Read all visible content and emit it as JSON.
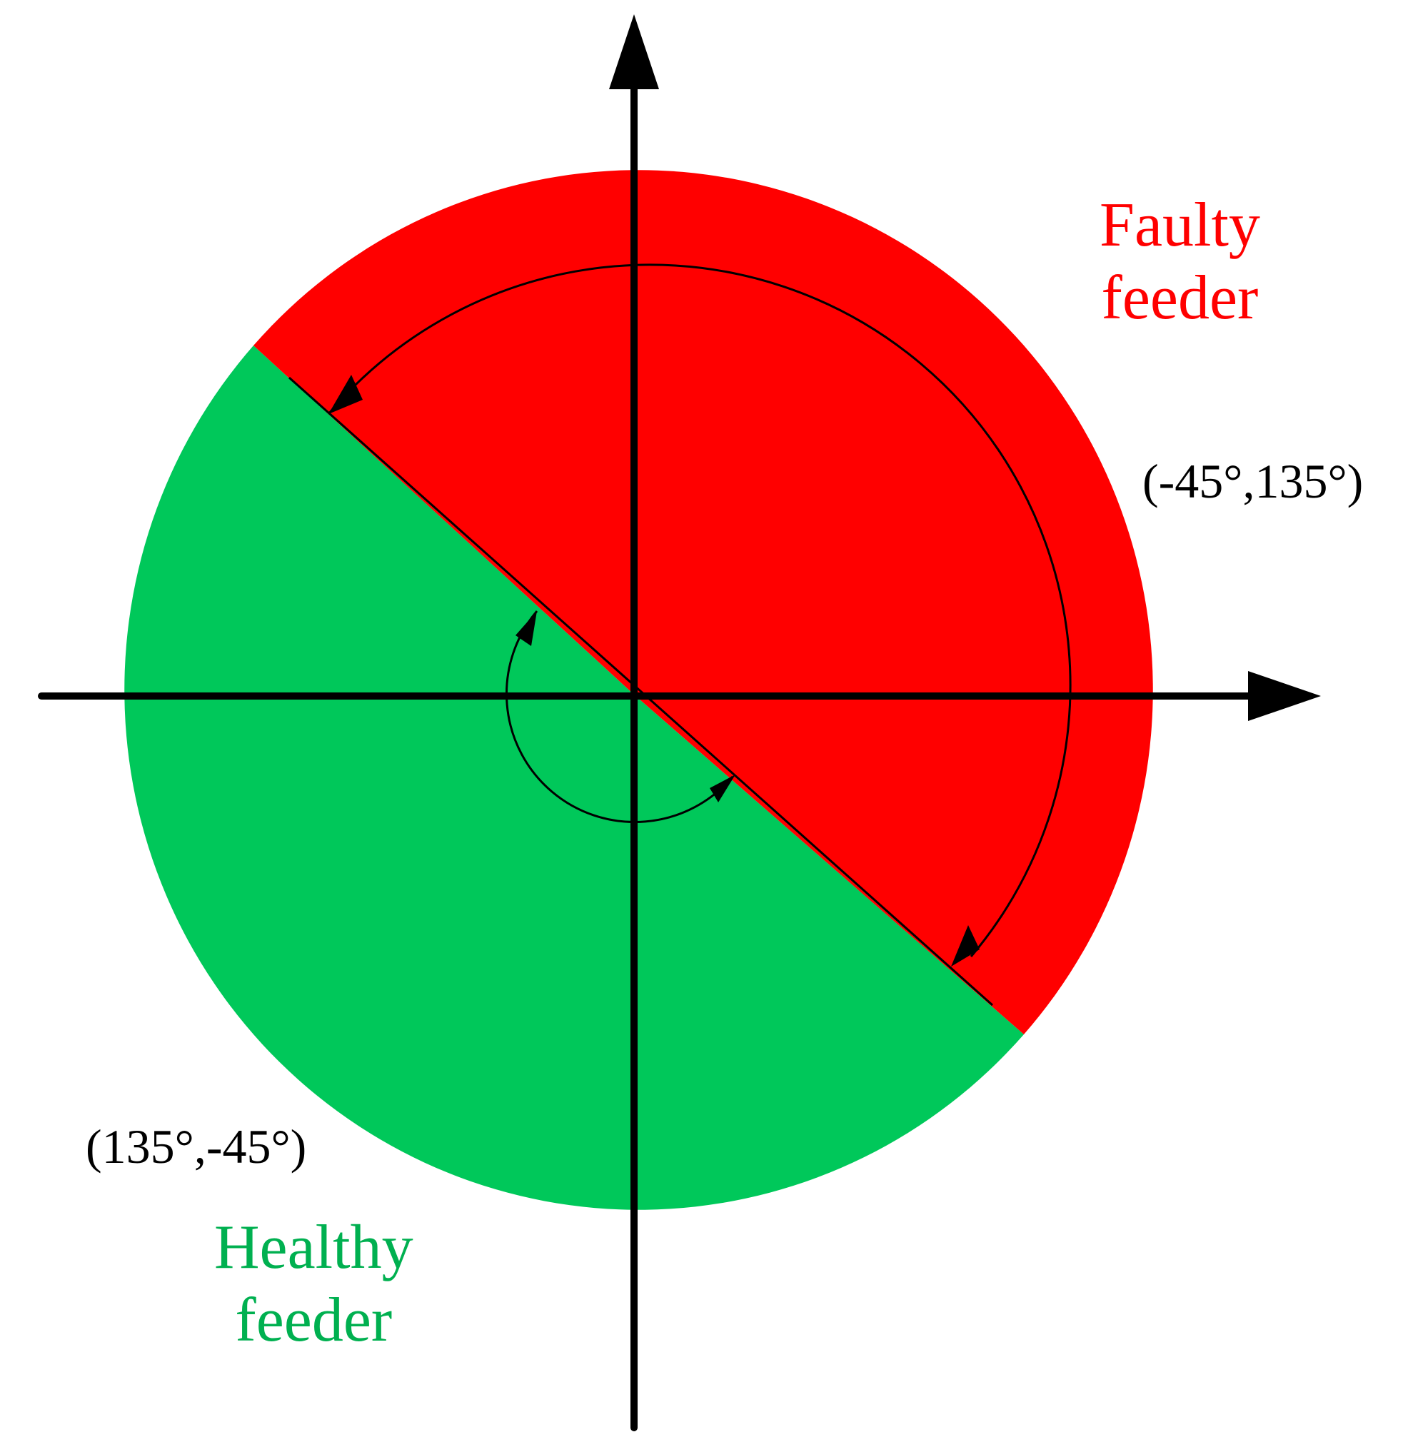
{
  "diagram": {
    "labels": {
      "faulty_line1": "Faulty",
      "faulty_line2": "feeder",
      "healthy_line1": "Healthy",
      "healthy_line2": "feeder",
      "faulty_range": "(-45°,135°)",
      "healthy_range": "(135°,-45°)"
    },
    "colors": {
      "faulty": "#ff0000",
      "healthy": "#00c85a",
      "axes": "#000000"
    }
  }
}
